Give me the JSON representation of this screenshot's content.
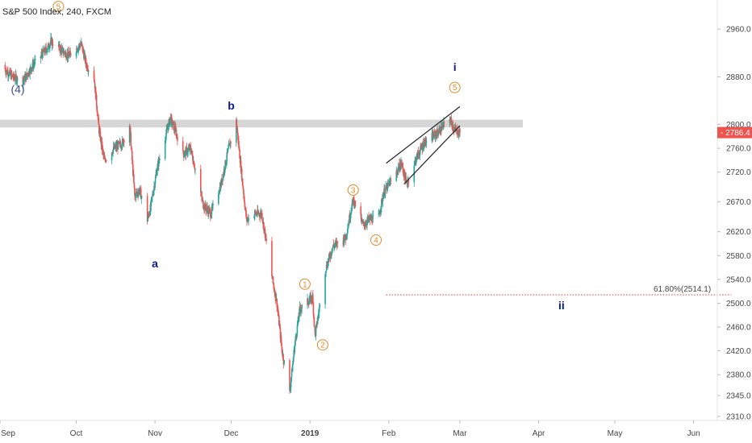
{
  "chart_data": {
    "type": "candlestick",
    "title": "S&P 500 Index, 240, FXCM",
    "ylim": [
      2310,
      2990
    ],
    "y_ticks": [
      2960.0,
      2880.0,
      2800.0,
      2760.0,
      2720.0,
      2670.0,
      2620.0,
      2580.0,
      2540.0,
      2500.0,
      2460.0,
      2420.0,
      2380.0,
      2345.0,
      2310.0
    ],
    "y_tick_labels": [
      "2960.0",
      "2880.0",
      "2800.0",
      "2760.0",
      "2720.0",
      "2670.0",
      "2620.0",
      "2580.0",
      "2540.0",
      "2500.0",
      "2460.0",
      "2420.0",
      "2380.0",
      "2345.0",
      "2310.0"
    ],
    "x_labels": [
      "Sep",
      "Oct",
      "Nov",
      "Dec",
      "2019",
      "Feb",
      "Mar",
      "Apr",
      "May",
      "Jun"
    ],
    "x_label_dates": [
      "2018-09-01",
      "2018-10-01",
      "2018-11-01",
      "2018-12-01",
      "2019-01-01",
      "2019-02-01",
      "2019-03-01",
      "2019-04-01",
      "2019-05-01",
      "2019-06-01"
    ],
    "xlim": [
      "2018-09-01",
      "2019-06-10"
    ],
    "price_path": [
      [
        "2018-09-01",
        2900
      ],
      [
        "2018-09-06",
        2880
      ],
      [
        "2018-09-10",
        2872
      ],
      [
        "2018-09-14",
        2900
      ],
      [
        "2018-09-20",
        2930
      ],
      [
        "2018-09-21",
        2940
      ],
      [
        "2018-09-28",
        2915
      ],
      [
        "2018-10-03",
        2935
      ],
      [
        "2018-10-05",
        2900
      ],
      [
        "2018-10-08",
        2880
      ],
      [
        "2018-10-10",
        2790
      ],
      [
        "2018-10-12",
        2740
      ],
      [
        "2018-10-16",
        2760
      ],
      [
        "2018-10-19",
        2768
      ],
      [
        "2018-10-22",
        2800
      ],
      [
        "2018-10-24",
        2680
      ],
      [
        "2018-10-26",
        2690
      ],
      [
        "2018-10-29",
        2640
      ],
      [
        "2018-10-30",
        2655
      ],
      [
        "2018-11-02",
        2730
      ],
      [
        "2018-11-07",
        2810
      ],
      [
        "2018-11-09",
        2790
      ],
      [
        "2018-11-12",
        2750
      ],
      [
        "2018-11-15",
        2760
      ],
      [
        "2018-11-20",
        2665
      ],
      [
        "2018-11-23",
        2650
      ],
      [
        "2018-11-27",
        2700
      ],
      [
        "2018-11-30",
        2760
      ],
      [
        "2018-12-03",
        2805
      ],
      [
        "2018-12-05",
        2720
      ],
      [
        "2018-12-07",
        2640
      ],
      [
        "2018-12-10",
        2650
      ],
      [
        "2018-12-13",
        2650
      ],
      [
        "2018-12-17",
        2545
      ],
      [
        "2018-12-19",
        2500
      ],
      [
        "2018-12-21",
        2420
      ],
      [
        "2018-12-24",
        2350
      ],
      [
        "2018-12-26",
        2430
      ],
      [
        "2018-12-28",
        2490
      ],
      [
        "2019-01-02",
        2510
      ],
      [
        "2019-01-03",
        2445
      ],
      [
        "2019-01-07",
        2555
      ],
      [
        "2019-01-10",
        2595
      ],
      [
        "2019-01-15",
        2610
      ],
      [
        "2019-01-18",
        2675
      ],
      [
        "2019-01-22",
        2630
      ],
      [
        "2019-01-24",
        2640
      ],
      [
        "2019-01-28",
        2645
      ],
      [
        "2019-01-30",
        2685
      ],
      [
        "2019-02-04",
        2720
      ],
      [
        "2019-02-06",
        2735
      ],
      [
        "2019-02-08",
        2700
      ],
      [
        "2019-02-12",
        2745
      ],
      [
        "2019-02-15",
        2770
      ],
      [
        "2019-02-20",
        2785
      ],
      [
        "2019-02-22",
        2795
      ],
      [
        "2019-02-25",
        2810
      ],
      [
        "2019-02-27",
        2790
      ],
      [
        "2019-03-01",
        2786.4
      ]
    ],
    "last_price": 2786.4,
    "last_price_label": "2786.4",
    "resistance_zone": [
      2795,
      2808
    ],
    "fib_level": {
      "value": 2514.1,
      "label": "61.80%(2514.1)",
      "start": "2019-01-31",
      "end": "2019-05-31"
    },
    "wedge_lines": [
      {
        "start": [
          "2019-01-31",
          2735
        ],
        "end": [
          "2019-03-01",
          2830
        ]
      },
      {
        "start": [
          "2019-02-07",
          2700
        ],
        "end": [
          "2019-03-01",
          2798
        ]
      }
    ],
    "wave_labels": [
      {
        "text": "a",
        "date": "2018-11-01",
        "price": 2560,
        "style": "bold"
      },
      {
        "text": "b",
        "date": "2018-12-01",
        "price": 2825,
        "style": "bold"
      },
      {
        "text": "i",
        "date": "2019-02-27",
        "price": 2890,
        "style": "bold"
      },
      {
        "text": "ii",
        "date": "2019-04-10",
        "price": 2490,
        "style": "bold"
      },
      {
        "text": "(4)",
        "date": "2018-09-08",
        "price": 2853,
        "style": "plain"
      }
    ],
    "circled_labels": [
      {
        "text": "1",
        "date": "2018-12-30",
        "price": 2532
      },
      {
        "text": "2",
        "date": "2019-01-06",
        "price": 2430
      },
      {
        "text": "3",
        "date": "2019-01-18",
        "price": 2690
      },
      {
        "text": "4",
        "date": "2019-01-27",
        "price": 2606
      },
      {
        "text": "5",
        "date": "2019-02-27",
        "price": 2862
      },
      {
        "text": "5",
        "date": "2018-09-24",
        "price": 2998
      }
    ],
    "colors": {
      "up": "#26a69a",
      "down": "#ef5350",
      "wave": "#0d1a8c",
      "circle": "#e08a2a",
      "fib": "#e53935",
      "zone": "#d6d6d6",
      "price_tag": "#ef5350"
    },
    "grid": false,
    "legend": "none"
  }
}
